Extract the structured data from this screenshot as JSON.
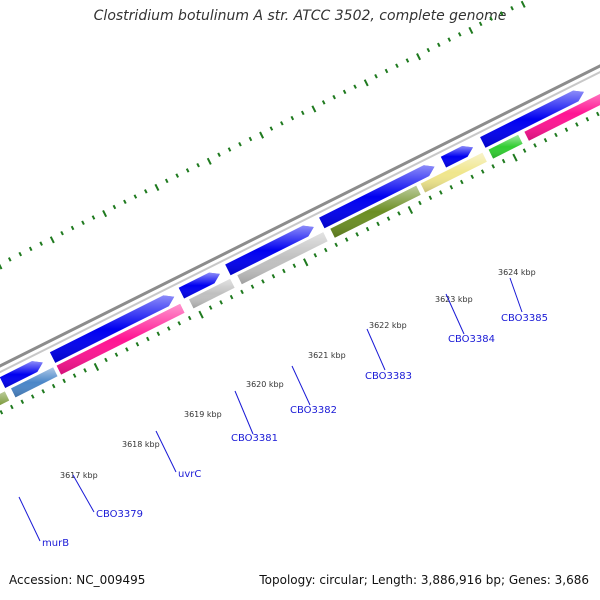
{
  "title": "Clostridium botulinum A str. ATCC 3502, complete genome",
  "footer": {
    "accession": "Accession: NC_009495",
    "stats": "Topology: circular; Length: 3,886,916 bp; Genes: 3,686"
  },
  "colors": {
    "backbone": "#8c8c8c",
    "forward_cds": "#0000f0",
    "tick": "#1f7a1f",
    "label": "#1a1ad6",
    "label_line": "#1a1ad6"
  },
  "scale_labels": [
    "3617 kbp",
    "3618 kbp",
    "3619 kbp",
    "3620 kbp",
    "3621 kbp",
    "3622 kbp",
    "3623 kbp",
    "3624 kbp"
  ],
  "gene_labels": [
    "murB",
    "CBO3379",
    "uvrC",
    "CBO3381",
    "CBO3382",
    "CBO3383",
    "CBO3384",
    "CBO3385"
  ],
  "reverse_features": [
    {
      "color": "#6b8e23"
    },
    {
      "color": "#4a86c8"
    },
    {
      "color": "#ff1493"
    },
    {
      "color": "#c0c0c0"
    },
    {
      "color": "#c0c0c0"
    },
    {
      "color": "#6b8e23"
    },
    {
      "color": "#f0e68c"
    },
    {
      "color": "#32cd32"
    },
    {
      "color": "#ff1493"
    }
  ]
}
